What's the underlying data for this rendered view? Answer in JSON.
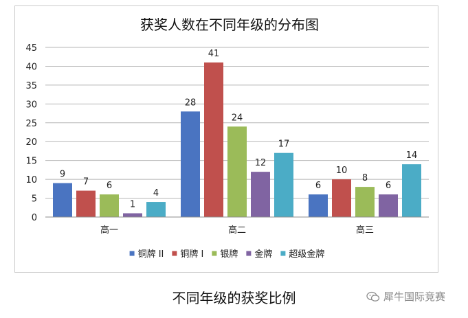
{
  "chart_data": {
    "type": "bar",
    "title": "获奖人数在不同年级的分布图",
    "categories": [
      "高一",
      "高二",
      "高三"
    ],
    "series": [
      {
        "name": "铜牌 II",
        "color": "#4a74c1",
        "values": [
          9,
          28,
          6
        ]
      },
      {
        "name": "铜牌 I",
        "color": "#c0504d",
        "values": [
          7,
          41,
          10
        ]
      },
      {
        "name": "银牌",
        "color": "#9bbb59",
        "values": [
          6,
          24,
          8
        ]
      },
      {
        "name": "金牌",
        "color": "#8064a2",
        "values": [
          1,
          12,
          6
        ]
      },
      {
        "name": "超级金牌",
        "color": "#4bacc6",
        "values": [
          4,
          17,
          14
        ]
      }
    ],
    "ylim": [
      0,
      45
    ],
    "yticks": [
      0,
      5,
      10,
      15,
      20,
      25,
      30,
      35,
      40,
      45
    ],
    "grid": true,
    "data_labels": true,
    "legend": "bottom"
  },
  "caption": "不同年级的获奖比例",
  "watermark": {
    "text": "犀牛国际竞赛",
    "icon": "wechat-icon"
  }
}
